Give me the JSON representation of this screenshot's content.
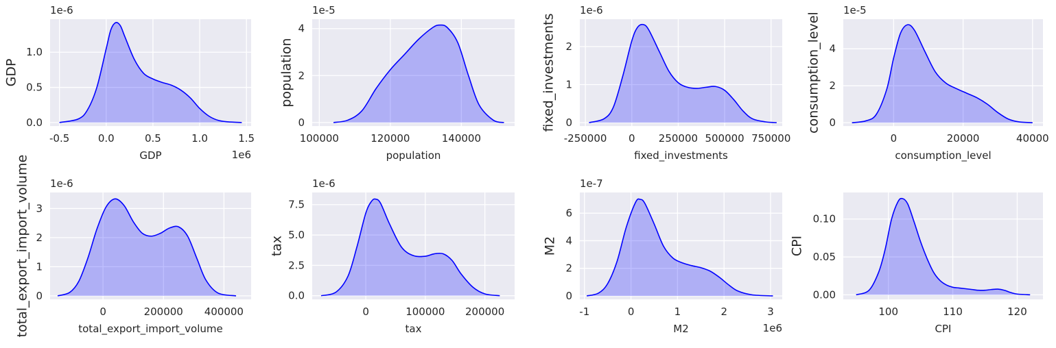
{
  "chart_data": [
    {
      "type": "area",
      "xlabel": "GDP",
      "ylabel": "GDP",
      "x_offset": "1e6",
      "y_offset": "1e-6",
      "xlim": [
        -0.6,
        1.55
      ],
      "ylim": [
        -0.05,
        1.47
      ],
      "xticks": [
        -0.5,
        0.0,
        0.5,
        1.0,
        1.5
      ],
      "xtick_labels": [
        "-0.5",
        "0.0",
        "0.5",
        "1.0",
        "1.5"
      ],
      "yticks": [
        0,
        0.5,
        1.0
      ],
      "ytick_labels": [
        "0.0",
        "0.5",
        "1.0"
      ],
      "x": [
        -0.5,
        -0.3,
        -0.2,
        -0.1,
        0.0,
        0.05,
        0.1,
        0.15,
        0.2,
        0.3,
        0.4,
        0.5,
        0.6,
        0.7,
        0.8,
        0.9,
        1.0,
        1.1,
        1.2,
        1.3,
        1.45
      ],
      "y": [
        0.0,
        0.05,
        0.18,
        0.5,
        1.05,
        1.32,
        1.42,
        1.38,
        1.22,
        0.9,
        0.7,
        0.62,
        0.57,
        0.53,
        0.46,
        0.35,
        0.2,
        0.09,
        0.03,
        0.01,
        0.0
      ]
    },
    {
      "type": "area",
      "xlabel": "population",
      "ylabel": "population",
      "x_offset": "",
      "y_offset": "1e-5",
      "xlim": [
        98000,
        155000
      ],
      "ylim": [
        -0.15,
        4.4
      ],
      "xticks": [
        100000,
        120000,
        140000
      ],
      "xtick_labels": [
        "100000",
        "120000",
        "140000"
      ],
      "yticks": [
        0,
        2,
        4
      ],
      "ytick_labels": [
        "0",
        "2",
        "4"
      ],
      "x": [
        104000,
        108000,
        112000,
        116000,
        120000,
        124000,
        128000,
        132000,
        134000,
        136000,
        139000,
        142000,
        145000,
        149000,
        152000
      ],
      "y": [
        0.0,
        0.1,
        0.5,
        1.45,
        2.25,
        2.9,
        3.55,
        4.05,
        4.15,
        4.05,
        3.4,
        2.0,
        0.75,
        0.1,
        0.0
      ]
    },
    {
      "type": "area",
      "xlabel": "fixed_investments",
      "ylabel": "fixed_investments",
      "x_offset": "",
      "y_offset": "1e-6",
      "xlim": [
        -280000,
        810000
      ],
      "ylim": [
        -0.09,
        2.72
      ],
      "xticks": [
        -250000,
        0,
        250000,
        500000,
        750000
      ],
      "xtick_labels": [
        "-250000",
        "0",
        "250000",
        "500000",
        "750000"
      ],
      "yticks": [
        0,
        1,
        2
      ],
      "ytick_labels": [
        "0",
        "1",
        "2"
      ],
      "x": [
        -230000,
        -150000,
        -100000,
        -50000,
        0,
        30000,
        60000,
        90000,
        150000,
        200000,
        250000,
        300000,
        350000,
        400000,
        450000,
        500000,
        550000,
        600000,
        650000,
        720000,
        780000
      ],
      "y": [
        0.0,
        0.1,
        0.4,
        1.2,
        2.15,
        2.5,
        2.58,
        2.45,
        1.85,
        1.35,
        1.05,
        0.93,
        0.9,
        0.93,
        0.95,
        0.85,
        0.6,
        0.3,
        0.1,
        0.02,
        0.0
      ]
    },
    {
      "type": "area",
      "xlabel": "consumption_level",
      "ylabel": "consumption_level",
      "x_offset": "",
      "y_offset": "1e-5",
      "xlim": [
        -14500,
        43000
      ],
      "ylim": [
        -0.18,
        5.6
      ],
      "xticks": [
        0,
        20000,
        40000
      ],
      "xtick_labels": [
        "0",
        "20000",
        "40000"
      ],
      "yticks": [
        0,
        2,
        4
      ],
      "ytick_labels": [
        "0",
        "2",
        "4"
      ],
      "x": [
        -12000,
        -8000,
        -5000,
        -2000,
        0,
        2000,
        4000,
        6000,
        9000,
        12000,
        15000,
        18000,
        21000,
        24000,
        27000,
        30000,
        33000,
        36000,
        40000
      ],
      "y": [
        0.0,
        0.1,
        0.45,
        1.8,
        3.5,
        4.85,
        5.3,
        5.0,
        3.85,
        2.75,
        2.15,
        1.85,
        1.6,
        1.35,
        1.0,
        0.55,
        0.2,
        0.05,
        0.0
      ]
    },
    {
      "type": "area",
      "xlabel": "total_export_import_volume",
      "ylabel": "total_export_import_volume",
      "x_offset": "",
      "y_offset": "1e-6",
      "xlim": [
        -175000,
        490000
      ],
      "ylim": [
        -0.12,
        3.55
      ],
      "xticks": [
        0,
        200000,
        400000
      ],
      "xtick_labels": [
        "0",
        "200000",
        "400000"
      ],
      "yticks": [
        0,
        1,
        2,
        3
      ],
      "ytick_labels": [
        "0",
        "1",
        "2",
        "3"
      ],
      "x": [
        -150000,
        -110000,
        -80000,
        -50000,
        -20000,
        10000,
        40000,
        70000,
        100000,
        130000,
        160000,
        190000,
        220000,
        250000,
        280000,
        310000,
        340000,
        380000,
        440000
      ],
      "y": [
        0.0,
        0.12,
        0.5,
        1.3,
        2.3,
        3.05,
        3.33,
        3.1,
        2.55,
        2.15,
        2.05,
        2.15,
        2.33,
        2.37,
        2.05,
        1.3,
        0.55,
        0.1,
        0.0
      ]
    },
    {
      "type": "area",
      "xlabel": "tax",
      "ylabel": "tax",
      "x_offset": "",
      "y_offset": "1e-6",
      "xlim": [
        -90000,
        250000
      ],
      "ylim": [
        -0.3,
        8.5
      ],
      "xticks": [
        0,
        100000,
        200000
      ],
      "xtick_labels": [
        "0",
        "100000",
        "200000"
      ],
      "yticks": [
        0,
        2.5,
        5.0,
        7.5
      ],
      "ytick_labels": [
        "0.0",
        "2.5",
        "5.0",
        "7.5"
      ],
      "x": [
        -75000,
        -50000,
        -30000,
        -15000,
        0,
        10000,
        17000,
        25000,
        40000,
        60000,
        80000,
        100000,
        115000,
        130000,
        145000,
        160000,
        180000,
        200000,
        225000
      ],
      "y": [
        0.0,
        0.3,
        1.6,
        4.0,
        6.8,
        7.8,
        7.95,
        7.6,
        5.9,
        4.0,
        3.3,
        3.25,
        3.45,
        3.45,
        2.9,
        1.8,
        0.7,
        0.15,
        0.0
      ]
    },
    {
      "type": "area",
      "xlabel": "M2",
      "ylabel": "M2",
      "x_offset": "1e6",
      "y_offset": "1e-7",
      "xlim": [
        -1.1,
        3.25
      ],
      "ylim": [
        -0.25,
        7.5
      ],
      "xticks": [
        -1,
        0,
        1,
        2,
        3
      ],
      "xtick_labels": [
        "-1",
        "0",
        "1",
        "2",
        "3"
      ],
      "yticks": [
        0,
        2,
        4,
        6
      ],
      "ytick_labels": [
        "0",
        "2",
        "4",
        "6"
      ],
      "x": [
        -0.95,
        -0.7,
        -0.5,
        -0.3,
        -0.1,
        0.1,
        0.2,
        0.3,
        0.5,
        0.7,
        0.9,
        1.1,
        1.3,
        1.5,
        1.7,
        1.9,
        2.1,
        2.3,
        2.6,
        3.05
      ],
      "y": [
        0.0,
        0.2,
        0.9,
        2.5,
        5.0,
        6.8,
        7.0,
        6.7,
        5.2,
        3.6,
        2.75,
        2.4,
        2.2,
        2.05,
        1.8,
        1.35,
        0.8,
        0.35,
        0.08,
        0.0
      ]
    },
    {
      "type": "area",
      "xlabel": "CPI",
      "ylabel": "CPI",
      "x_offset": "",
      "y_offset": "",
      "xlim": [
        93,
        124
      ],
      "ylim": [
        -0.006,
        0.135
      ],
      "xticks": [
        100,
        110,
        120
      ],
      "xtick_labels": [
        "100",
        "110",
        "120"
      ],
      "yticks": [
        0,
        0.05,
        0.1
      ],
      "ytick_labels": [
        "0.00",
        "0.05",
        "0.10"
      ],
      "x": [
        95,
        97,
        98.5,
        99.5,
        100.5,
        101.5,
        102.2,
        103,
        104,
        105,
        106,
        107,
        108,
        109,
        110,
        111,
        112,
        113,
        114,
        115,
        116,
        117,
        118,
        119,
        120,
        122
      ],
      "y": [
        0.0,
        0.006,
        0.03,
        0.06,
        0.1,
        0.123,
        0.127,
        0.12,
        0.096,
        0.07,
        0.048,
        0.03,
        0.019,
        0.013,
        0.01,
        0.009,
        0.008,
        0.007,
        0.006,
        0.006,
        0.007,
        0.0075,
        0.006,
        0.003,
        0.001,
        0.0
      ]
    }
  ]
}
